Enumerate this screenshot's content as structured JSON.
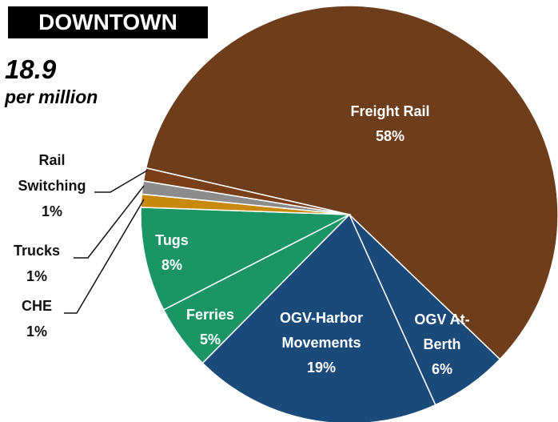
{
  "chart_data": {
    "type": "pie",
    "title": "DOWNTOWN",
    "annotations": [
      "18.9",
      "per million"
    ],
    "categories": [
      "Freight Rail",
      "OGV At-Berth",
      "OGV-Harbor Movements",
      "Ferries",
      "Tugs",
      "CHE",
      "Trucks",
      "Rail Switching"
    ],
    "values": [
      58,
      6,
      19,
      5,
      8,
      1,
      1,
      1
    ],
    "value_labels": [
      "58%",
      "6%",
      "19%",
      "5%",
      "8%",
      "1%",
      "1%",
      "1%"
    ],
    "colors": [
      "#6e3e1c",
      "#1a4a7a",
      "#1a4a7a",
      "#1b9466",
      "#1b9466",
      "#c98a0c",
      "#8c8c8c",
      "#7a3f18"
    ]
  }
}
